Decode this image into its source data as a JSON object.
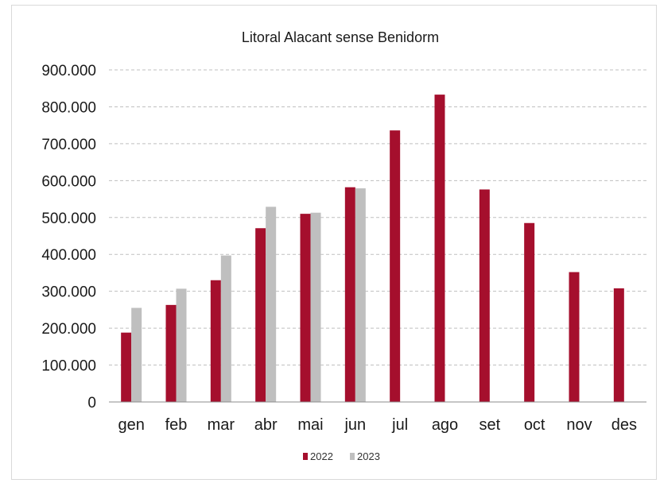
{
  "chart_data": {
    "type": "bar",
    "title": "Litoral Alacant sense Benidorm",
    "categories": [
      "gen",
      "feb",
      "mar",
      "abr",
      "mai",
      "jun",
      "jul",
      "ago",
      "set",
      "oct",
      "nov",
      "des"
    ],
    "series": [
      {
        "name": "2022",
        "color": "#a50f2d",
        "values": [
          188000,
          263000,
          330000,
          471000,
          510000,
          582000,
          736000,
          833000,
          576000,
          485000,
          352000,
          308000
        ]
      },
      {
        "name": "2023",
        "color": "#bfbfbf",
        "values": [
          255000,
          307000,
          397000,
          529000,
          513000,
          579000,
          null,
          null,
          null,
          null,
          null,
          null
        ]
      }
    ],
    "yticks": [
      "0",
      "100.000",
      "200.000",
      "300.000",
      "400.000",
      "500.000",
      "600.000",
      "700.000",
      "800.000",
      "900.000"
    ],
    "ylim": [
      0,
      900000
    ],
    "xlabel": "",
    "ylabel": "",
    "grid": true,
    "legend_position": "bottom"
  }
}
